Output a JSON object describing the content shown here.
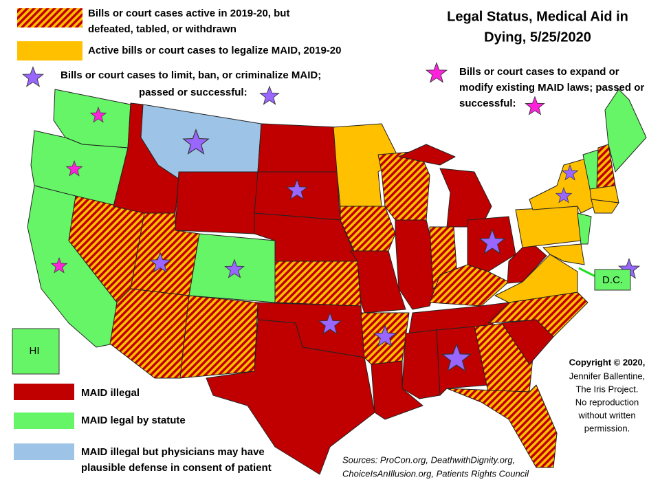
{
  "title": {
    "lines": [
      "Legal Status, Medical Aid in",
      "Dying, 5/25/2020"
    ]
  },
  "legend_top": [
    {
      "lines": [
        "Bills or court cases  active in 2019-20, but",
        "defeated, tabled, or withdrawn"
      ]
    },
    {
      "lines": [
        "Active bills or court cases to legalize MAID, 2019-20"
      ]
    },
    {
      "lines": [
        "Bills or court cases to limit, ban, or criminalize MAID;",
        "passed or successful:"
      ]
    },
    {
      "lines": [
        "Bills or court cases to expand or",
        "modify existing MAID laws; passed or",
        "successful:"
      ]
    }
  ],
  "legend_bottom": [
    {
      "lines": [
        "MAID illegal"
      ]
    },
    {
      "lines": [
        "MAID legal by statute"
      ]
    },
    {
      "lines": [
        "MAID illegal but physicians may have",
        "plausible defense in consent of patient"
      ]
    }
  ],
  "insets": {
    "hawaii": "HI",
    "dc": "D.C."
  },
  "copyright": {
    "lines": [
      "Copyright © 2020,",
      "Jennifer Ballentine,",
      "The Iris Project.",
      "No reproduction",
      "without  written",
      "permission."
    ]
  },
  "sources": {
    "lines": [
      "Sources: ProCon.org,  DeathwithDignity.org,",
      "ChoiceIsAnIllusion.org, Patients Rights Council"
    ]
  }
}
